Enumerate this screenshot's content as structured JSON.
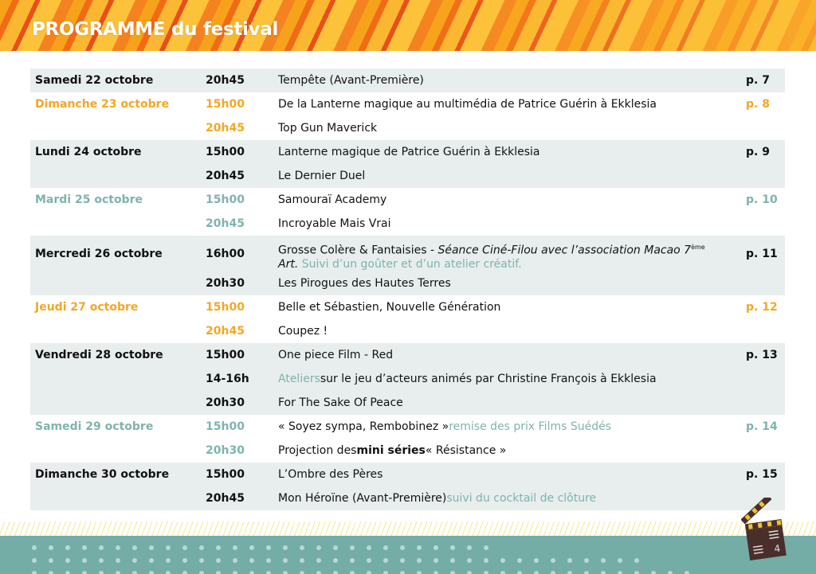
{
  "header": {
    "title": "PROGRAMME du festival"
  },
  "colors": {
    "orange": "#f5a623",
    "teal": "#7fb3ae",
    "shade": "#e7eeed",
    "footer": "#74aca6"
  },
  "page_number": "4",
  "days": [
    {
      "day": "Samedi 22 octobre",
      "color": "dark",
      "page": "p. 7",
      "shade": true,
      "entries": [
        {
          "time": "20h45",
          "title": [
            {
              "text": "Tempête (Avant-Première)"
            }
          ]
        }
      ]
    },
    {
      "day": "Dimanche  23 octobre",
      "color": "orange",
      "page": "p. 8",
      "shade": false,
      "entries": [
        {
          "time": "15h00",
          "title": [
            {
              "text": "De la Lanterne magique au multimédia de Patrice Guérin à Ekklesia"
            }
          ]
        },
        {
          "time": "20h45",
          "title": [
            {
              "text": "Top Gun Maverick"
            }
          ]
        }
      ]
    },
    {
      "day": "Lundi 24 octobre",
      "color": "dark",
      "page": "p. 9",
      "shade": true,
      "entries": [
        {
          "time": "15h00",
          "title": [
            {
              "text": "Lanterne magique de Patrice Guérin à Ekklesia"
            }
          ]
        },
        {
          "time": "20h45",
          "title": [
            {
              "text": "Le Dernier Duel"
            }
          ]
        }
      ]
    },
    {
      "day": "Mardi 25 octobre",
      "color": "teal",
      "page": "p. 10",
      "shade": false,
      "entries": [
        {
          "time": "15h00",
          "title": [
            {
              "text": "Samouraï Academy"
            }
          ]
        },
        {
          "time": "20h45",
          "title": [
            {
              "text": "Incroyable Mais Vrai"
            }
          ]
        }
      ]
    },
    {
      "day": "Mercredi 26 octobre",
      "color": "dark",
      "page": "p. 11",
      "shade": true,
      "entries": [
        {
          "time": "16h00",
          "tall": true,
          "title": [
            {
              "text": "Grosse Colère & Fantaisies - "
            },
            {
              "text": "Séance Ciné-Filou avec l’association Macao 7",
              "style": "it"
            },
            {
              "text": "ème",
              "style": "sup"
            },
            {
              "text": " Art.",
              "style": "it"
            },
            {
              "text": " Suivi d’un goûter et d’un atelier créatif.",
              "style": "teal"
            }
          ]
        },
        {
          "time": "20h30",
          "title": [
            {
              "text": "Les Pirogues des Hautes Terres"
            }
          ]
        }
      ]
    },
    {
      "day": "Jeudi 27 octobre",
      "color": "orange",
      "page": "p. 12",
      "shade": false,
      "entries": [
        {
          "time": "15h00",
          "title": [
            {
              "text": "Belle et Sébastien, Nouvelle Génération"
            }
          ]
        },
        {
          "time": "20h45",
          "title": [
            {
              "text": "Coupez !"
            }
          ]
        }
      ]
    },
    {
      "day": "Vendredi 28 octobre",
      "color": "dark",
      "page": "p. 13",
      "shade": true,
      "entries": [
        {
          "time": "15h00",
          "title": [
            {
              "text": "One piece Film - Red"
            }
          ]
        },
        {
          "time": "14-16h",
          "title": [
            {
              "text": "Ateliers",
              "style": "teal"
            },
            {
              "text": " sur le jeu d’acteurs animés par Christine François à Ekklesia"
            }
          ]
        },
        {
          "time": "20h30",
          "title": [
            {
              "text": "For The Sake Of Peace"
            }
          ]
        }
      ]
    },
    {
      "day": "Samedi 29 octobre",
      "color": "teal",
      "page": "p. 14",
      "shade": false,
      "entries": [
        {
          "time": "15h00",
          "title": [
            {
              "text": "« Soyez sympa, Rembobinez » "
            },
            {
              "text": "remise des prix Films Suédés",
              "style": "teal"
            }
          ]
        },
        {
          "time": "20h30",
          "title": [
            {
              "text": "Projection des "
            },
            {
              "text": "mini séries",
              "style": "b"
            },
            {
              "text": " « Résistance »"
            }
          ]
        }
      ]
    },
    {
      "day": "Dimanche 30 octobre",
      "color": "dark",
      "page": "p. 15",
      "shade": true,
      "entries": [
        {
          "time": "15h00",
          "title": [
            {
              "text": "L’Ombre des Pères"
            }
          ]
        },
        {
          "time": "20h45",
          "title": [
            {
              "text": "Mon Héroïne (Avant-Première) "
            },
            {
              "text": "suivi du cocktail de clôture",
              "style": "teal"
            }
          ]
        }
      ]
    }
  ]
}
